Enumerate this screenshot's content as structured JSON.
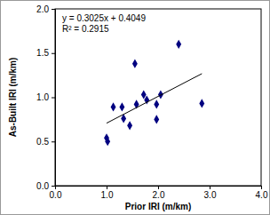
{
  "chart_data": {
    "type": "scatter",
    "x_label": "Prior IRI (m/km)",
    "y_label": "As-Built IRI (m/km)",
    "annotations": [
      "y = 0.3025x + 0.4049",
      "R² = 0.2915"
    ],
    "series": [
      {
        "type": "scatter",
        "color": "#000080",
        "marker": "diamond",
        "x": [
          1.0,
          1.02,
          1.13,
          1.3,
          1.33,
          1.45,
          1.55,
          1.58,
          1.72,
          1.78,
          1.97,
          1.97,
          2.05,
          2.4,
          2.85
        ],
        "values": [
          0.54,
          0.5,
          0.89,
          0.89,
          0.76,
          0.68,
          1.38,
          0.92,
          1.03,
          0.97,
          0.75,
          0.92,
          1.03,
          1.6,
          0.93
        ]
      },
      {
        "type": "line",
        "color": "#000000",
        "line_style": "solid",
        "x": [
          1.0,
          2.85
        ],
        "values": [
          0.7074,
          1.267
        ]
      }
    ],
    "xlim": [
      0,
      4
    ],
    "ylim": [
      0,
      2
    ],
    "xticks": [
      {
        "value": 0,
        "label": "0.0"
      },
      {
        "value": 1,
        "label": "1.0"
      },
      {
        "value": 2,
        "label": "2.0"
      },
      {
        "value": 3,
        "label": "3.0"
      },
      {
        "value": 4,
        "label": "4.0"
      }
    ],
    "yticks": [
      {
        "value": 0,
        "label": "0.0"
      },
      {
        "value": 0.5,
        "label": "0.5"
      },
      {
        "value": 1,
        "label": "1.0"
      },
      {
        "value": 1.5,
        "label": "1.5"
      },
      {
        "value": 2,
        "label": "2.0"
      }
    ],
    "grid": false
  }
}
